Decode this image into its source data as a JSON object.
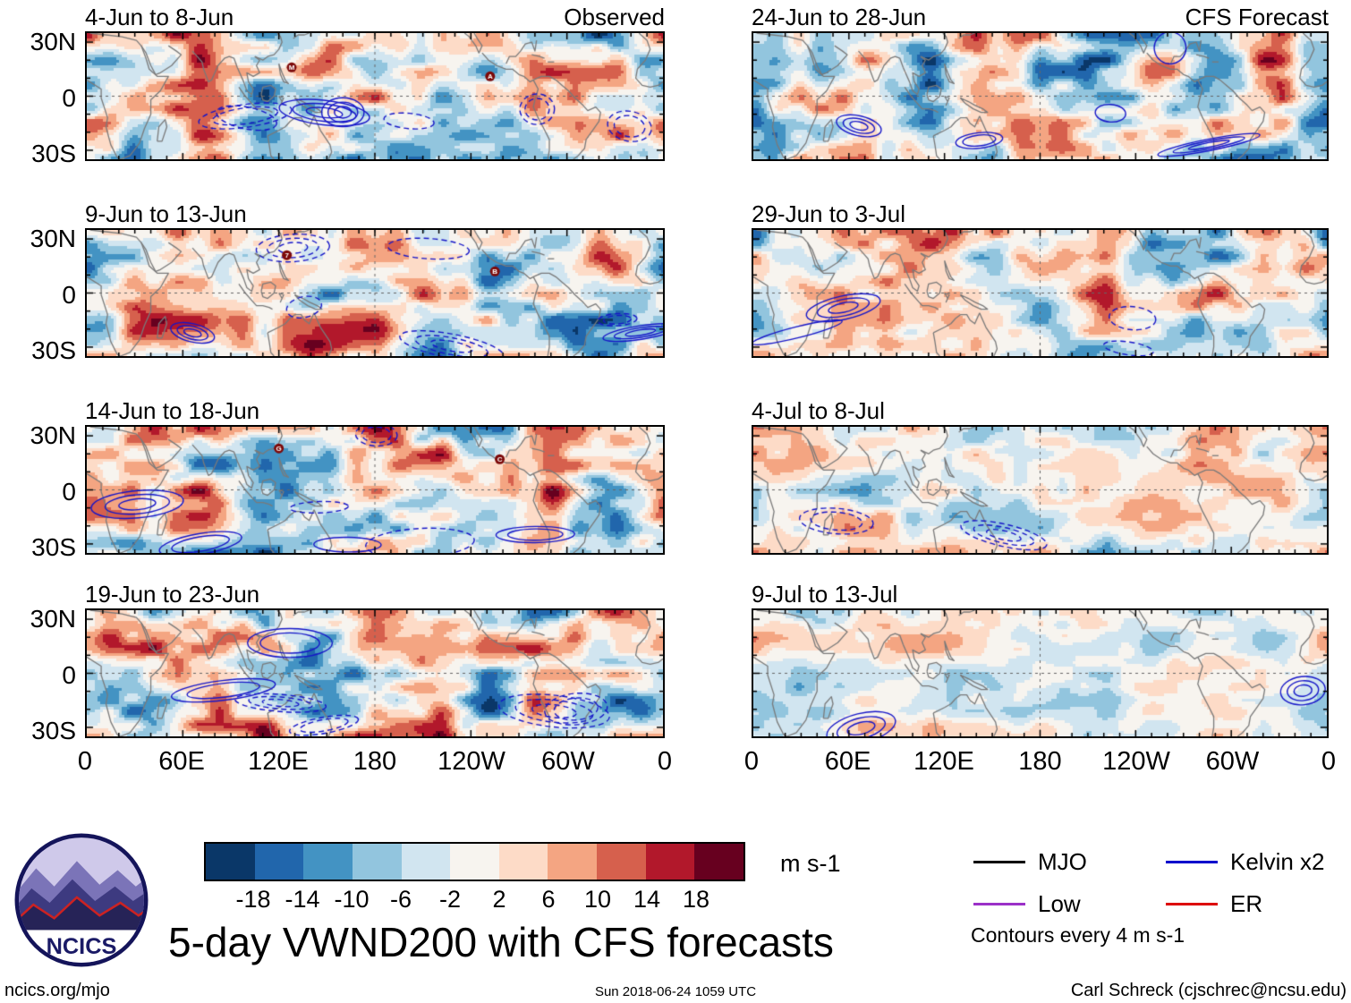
{
  "figure": {
    "title": "5-day VWND200 with CFS forecasts",
    "footer_left": "ncics.org/mjo",
    "footer_center": "Sun 2018-06-24 1059 UTC",
    "footer_right": "Carl Schreck (cjschrec@ncsu.edu)",
    "logo_text": "NCICS"
  },
  "chart_data": {
    "type": "heatmap",
    "title": "5-day VWND200 with CFS forecasts",
    "description": "Pentad-mean 200-hPa meridional wind anomalies (shaded, m s-1) over 35S-35N and 0-360 longitude; left column observed pentads, right column CFS forecast pentads; filtered wave contours every 4 m s-1 (blue solid positive, blue dashed negative)",
    "columns": [
      {
        "header": "Observed"
      },
      {
        "header": "CFS Forecast"
      }
    ],
    "panels": [
      {
        "title": "4-Jun to 8-Jun",
        "col": 0,
        "row": 0,
        "seed": 11,
        "intensity": 1.0,
        "contour_density": 1.0,
        "storms": [
          {
            "label": "M",
            "lon": 128,
            "lat": 16
          },
          {
            "label": "A",
            "lon": 252,
            "lat": 11
          }
        ]
      },
      {
        "title": "9-Jun to 13-Jun",
        "col": 0,
        "row": 1,
        "seed": 22,
        "intensity": 1.0,
        "contour_density": 1.0,
        "storms": [
          {
            "label": "7",
            "lon": 125,
            "lat": 21
          },
          {
            "label": "B",
            "lon": 255,
            "lat": 12
          }
        ]
      },
      {
        "title": "14-Jun to 18-Jun",
        "col": 0,
        "row": 2,
        "seed": 33,
        "intensity": 1.0,
        "contour_density": 1.0,
        "storms": [
          {
            "label": "G",
            "lon": 120,
            "lat": 23
          },
          {
            "label": "C",
            "lon": 258,
            "lat": 17
          }
        ]
      },
      {
        "title": "19-Jun to 23-Jun",
        "col": 0,
        "row": 3,
        "seed": 44,
        "intensity": 1.0,
        "contour_density": 0.9,
        "storms": []
      },
      {
        "title": "24-Jun to 28-Jun",
        "col": 1,
        "row": 0,
        "seed": 55,
        "intensity": 0.95,
        "contour_density": 0.7,
        "storms": []
      },
      {
        "title": "29-Jun to 3-Jul",
        "col": 1,
        "row": 1,
        "seed": 66,
        "intensity": 0.85,
        "contour_density": 0.6,
        "storms": []
      },
      {
        "title": "4-Jul to 8-Jul",
        "col": 1,
        "row": 2,
        "seed": 77,
        "intensity": 0.6,
        "contour_density": 0.35,
        "storms": []
      },
      {
        "title": "9-Jul to 13-Jul",
        "col": 1,
        "row": 3,
        "seed": 88,
        "intensity": 0.5,
        "contour_density": 0.3,
        "storms": []
      }
    ],
    "x_axis": {
      "ticks": [
        "0",
        "60E",
        "120E",
        "180",
        "120W",
        "60W",
        "0"
      ],
      "tick_lons": [
        0,
        60,
        120,
        180,
        240,
        300,
        360
      ]
    },
    "y_axis": {
      "ticks": [
        "30N",
        "0",
        "30S"
      ],
      "tick_lats": [
        30,
        0,
        -30
      ],
      "range_lat": [
        35,
        -35
      ]
    },
    "colorbar": {
      "levels": [
        -18,
        -14,
        -10,
        -6,
        -2,
        2,
        6,
        10,
        14,
        18
      ],
      "units": "m s-1",
      "colors": [
        "#0a3768",
        "#2166ac",
        "#4393c3",
        "#92c5de",
        "#d1e5f0",
        "#f7f4ef",
        "#fddbc7",
        "#f4a582",
        "#d6604d",
        "#b2182b",
        "#67001f"
      ]
    },
    "contours": {
      "note": "Contours every 4 m s-1",
      "interval": 4,
      "series": [
        {
          "name": "MJO",
          "color": "#000000"
        },
        {
          "name": "Kelvin x2",
          "color": "#0000cc"
        },
        {
          "name": "Low",
          "color": "#9b30c8"
        },
        {
          "name": "ER",
          "color": "#dd0000"
        }
      ]
    }
  }
}
